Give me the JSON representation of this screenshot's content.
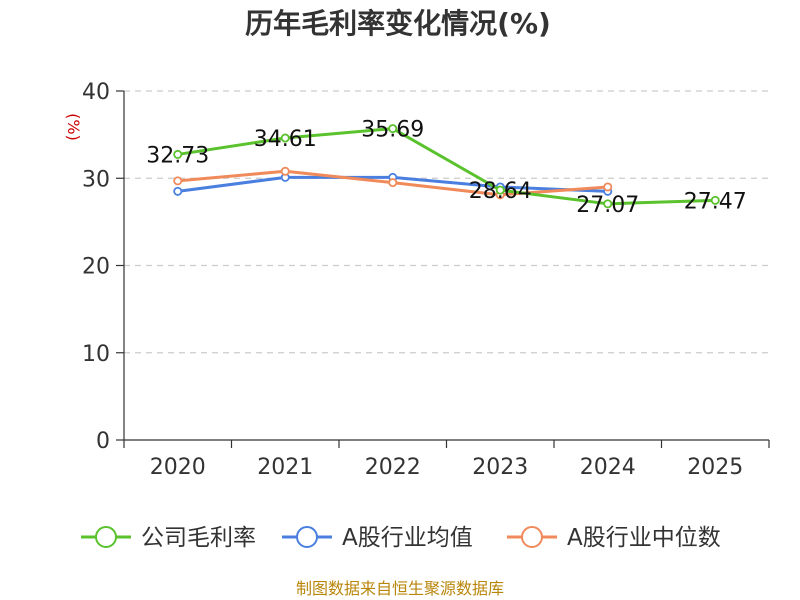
{
  "chart_data": {
    "type": "line",
    "title": "历年毛利率变化情况(%)",
    "ylabel": "(%)",
    "xlabel": "",
    "categories": [
      "2020",
      "2021",
      "2022",
      "2023",
      "2024",
      "2025"
    ],
    "ylim": [
      0,
      40
    ],
    "yticks": [
      0,
      10,
      20,
      30,
      40
    ],
    "grid": true,
    "legend_position": "bottom",
    "series": [
      {
        "name": "公司毛利率",
        "color": "#5ac22c",
        "values": [
          32.73,
          34.61,
          35.69,
          28.64,
          27.07,
          27.47
        ],
        "labels": [
          "32.73",
          "34.61",
          "35.69",
          "28.64",
          "27.07",
          "27.47"
        ]
      },
      {
        "name": "A股行业均值",
        "color": "#4a7fe0",
        "values": [
          28.5,
          30.1,
          30.1,
          29.0,
          28.5,
          null
        ]
      },
      {
        "name": "A股行业中位数",
        "color": "#f08a5a",
        "values": [
          29.7,
          30.8,
          29.5,
          28.1,
          29.0,
          null
        ]
      }
    ]
  },
  "footer": {
    "source": "制图数据来自恒生聚源数据库"
  }
}
